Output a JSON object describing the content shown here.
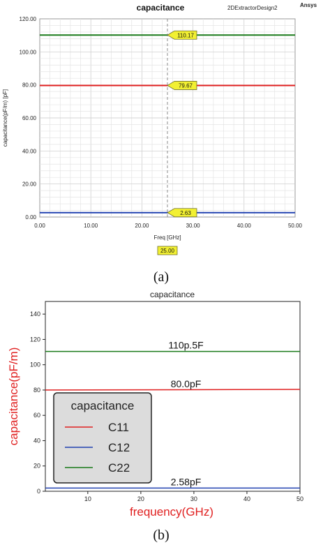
{
  "figure": {
    "caption_a": "(a)",
    "caption_b": "(b)"
  },
  "chart_data": [
    {
      "type": "line",
      "title": "capacitance",
      "header_right_1": "2DExtractorDesign2",
      "header_right_2": "Ansys",
      "xlabel": "Freq [GHz]",
      "ylabel": "capacitance(pF/m) [pF]",
      "xlim": [
        0,
        50
      ],
      "ylim": [
        0,
        120
      ],
      "x_ticks": [
        "0.00",
        "10.00",
        "20.00",
        "30.00",
        "40.00",
        "50.00"
      ],
      "y_ticks": [
        "0.00",
        "20.00",
        "40.00",
        "60.00",
        "80.00",
        "100.00",
        "120.00"
      ],
      "grid": true,
      "marker_x": 25,
      "marker_x_label": "25.00",
      "series": [
        {
          "x": [
            0,
            50
          ],
          "y": [
            110.17,
            110.17
          ],
          "color": "#1a7a1a",
          "marker_value": 110.17,
          "marker_label": "110.17"
        },
        {
          "x": [
            0,
            50
          ],
          "y": [
            79.67,
            79.67
          ],
          "color": "#e02020",
          "marker_value": 79.67,
          "marker_label": "79.67"
        },
        {
          "x": [
            0,
            50
          ],
          "y": [
            2.63,
            2.63
          ],
          "color": "#2040b0",
          "marker_value": 2.63,
          "marker_label": "2.63"
        }
      ]
    },
    {
      "type": "line",
      "title": "capacitance",
      "xlabel": "frequency(GHz)",
      "ylabel": "capacitance(pF/m)",
      "xlim": [
        2,
        50
      ],
      "ylim": [
        0,
        150
      ],
      "x_ticks": [
        "10",
        "20",
        "30",
        "40",
        "50"
      ],
      "y_ticks": [
        "0",
        "20",
        "40",
        "60",
        "80",
        "100",
        "120",
        "140"
      ],
      "grid": false,
      "legend_title": "capacitance",
      "legend_position": "bottom-left",
      "series": [
        {
          "name": "C11",
          "x": [
            2,
            50
          ],
          "y": [
            80.0,
            80.5
          ],
          "color": "#e02020",
          "label": "80.0pF"
        },
        {
          "name": "C12",
          "x": [
            2,
            50
          ],
          "y": [
            2.58,
            2.58
          ],
          "color": "#2040b0",
          "label": "2.58pF"
        },
        {
          "name": "C22",
          "x": [
            2,
            50
          ],
          "y": [
            110.5,
            110.5
          ],
          "color": "#1a7a1a",
          "label": "110p.5F"
        }
      ]
    }
  ]
}
